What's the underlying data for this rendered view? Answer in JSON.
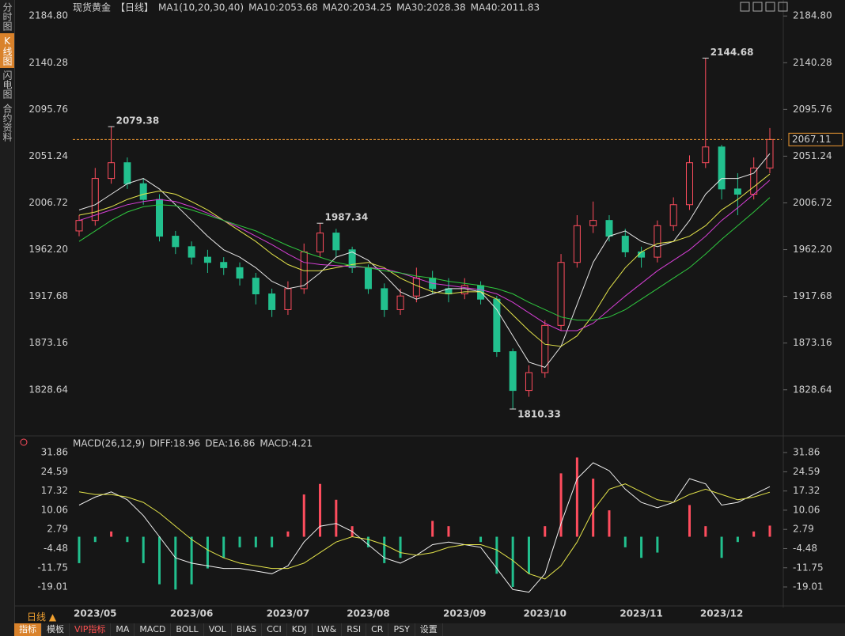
{
  "sidebar": {
    "tabs": [
      "分时图",
      "K线图",
      "闪电图",
      "合约资料"
    ]
  },
  "footer": {
    "period": "日线 ▲",
    "tabs": [
      "指标",
      "模板",
      "VIP指标",
      "MA",
      "MACD",
      "BOLL",
      "VOL",
      "BIAS",
      "CCI",
      "KDJ",
      "LW&",
      "RSI",
      "CR",
      "PSY",
      "设置"
    ]
  },
  "chart_data": [
    {
      "type": "candlestick",
      "title": "现货黄金",
      "subtitle": "【日线】",
      "indicator": "MA1(10,20,30,40)",
      "categories": [
        null,
        "2023/05",
        null,
        null,
        null,
        null,
        null,
        "2023/06",
        null,
        null,
        null,
        null,
        null,
        "2023/07",
        null,
        null,
        null,
        null,
        "2023/08",
        null,
        null,
        null,
        null,
        null,
        "2023/09",
        null,
        null,
        null,
        null,
        "2023/10",
        null,
        null,
        null,
        null,
        null,
        "2023/11",
        null,
        null,
        null,
        null,
        "2023/12",
        null,
        null,
        null
      ],
      "open": [
        1980,
        1990,
        2030,
        2045,
        2025,
        2010,
        1975,
        1965,
        1955,
        1950,
        1945,
        1935,
        1920,
        1905,
        1925,
        1960,
        1978,
        1962,
        1945,
        1925,
        1905,
        1918,
        1935,
        1925,
        1920,
        1928,
        1915,
        1865,
        1828,
        1845,
        1890,
        1950,
        1985,
        1990,
        1975,
        1960,
        1955,
        1985,
        2005,
        2045,
        2060,
        2020,
        2015,
        2040
      ],
      "high": [
        1995,
        2040,
        2079.38,
        2050,
        2030,
        2015,
        1980,
        1970,
        1962,
        1955,
        1950,
        1940,
        1925,
        1932,
        1968,
        1987.34,
        1982,
        1965,
        1948,
        1930,
        1925,
        1945,
        1942,
        1935,
        1935,
        1932,
        1918,
        1868,
        1852,
        1895,
        1958,
        1995,
        2008,
        1995,
        1982,
        1965,
        1990,
        2012,
        2052,
        2144.68,
        2062,
        2035,
        2050,
        2078
      ],
      "low": [
        1975,
        1985,
        2025,
        2020,
        2005,
        1970,
        1958,
        1948,
        1940,
        1938,
        1928,
        1910,
        1898,
        1900,
        1920,
        1955,
        1955,
        1940,
        1920,
        1898,
        1900,
        1912,
        1920,
        1912,
        1915,
        1910,
        1860,
        1810.33,
        1822,
        1840,
        1885,
        1945,
        1978,
        1970,
        1955,
        1945,
        1950,
        1980,
        2000,
        2040,
        2010,
        1995,
        2010,
        2035
      ],
      "close": [
        1990,
        2030,
        2045,
        2025,
        2010,
        1975,
        1965,
        1955,
        1950,
        1945,
        1935,
        1920,
        1905,
        1925,
        1960,
        1978,
        1962,
        1945,
        1925,
        1905,
        1918,
        1935,
        1925,
        1920,
        1928,
        1915,
        1865,
        1828,
        1845,
        1890,
        1950,
        1985,
        1990,
        1975,
        1960,
        1955,
        1985,
        2005,
        2045,
        2060,
        2020,
        2015,
        2040,
        2067.11
      ],
      "up_color": "#ff4d5e",
      "down_color": "#22c08e",
      "last_color": "#f39c32",
      "series": [
        {
          "name": "MA10:2053.68",
          "color": "#e6e6e6",
          "values": [
            2000,
            2005,
            2015,
            2025,
            2030,
            2020,
            2005,
            1990,
            1975,
            1962,
            1955,
            1945,
            1932,
            1925,
            1928,
            1940,
            1955,
            1960,
            1952,
            1938,
            1922,
            1915,
            1920,
            1925,
            1925,
            1922,
            1905,
            1880,
            1855,
            1850,
            1870,
            1910,
            1950,
            1975,
            1980,
            1970,
            1965,
            1970,
            1990,
            2015,
            2030,
            2030,
            2035,
            2053.68
          ]
        },
        {
          "name": "MA20:2034.25",
          "color": "#e3e34a",
          "values": [
            1995,
            1998,
            2003,
            2010,
            2015,
            2018,
            2015,
            2008,
            2000,
            1990,
            1980,
            1970,
            1958,
            1948,
            1942,
            1942,
            1945,
            1948,
            1950,
            1945,
            1935,
            1928,
            1922,
            1920,
            1922,
            1922,
            1915,
            1900,
            1885,
            1872,
            1870,
            1880,
            1900,
            1925,
            1945,
            1960,
            1968,
            1970,
            1975,
            1985,
            2000,
            2010,
            2022,
            2034.25
          ]
        },
        {
          "name": "MA30:2028.38",
          "color": "#d63fd6",
          "values": [
            1990,
            1995,
            2000,
            2005,
            2008,
            2010,
            2008,
            2003,
            1997,
            1990,
            1983,
            1975,
            1967,
            1958,
            1950,
            1948,
            1947,
            1946,
            1945,
            1944,
            1940,
            1935,
            1930,
            1928,
            1926,
            1924,
            1920,
            1912,
            1902,
            1892,
            1885,
            1885,
            1892,
            1905,
            1918,
            1930,
            1942,
            1952,
            1962,
            1975,
            1990,
            2002,
            2015,
            2028.38
          ]
        },
        {
          "name": "MA40:2011.83",
          "color": "#2fc93f",
          "values": [
            1970,
            1980,
            1990,
            1998,
            2003,
            2005,
            2004,
            2000,
            1995,
            1990,
            1985,
            1980,
            1973,
            1966,
            1960,
            1955,
            1950,
            1947,
            1945,
            1942,
            1940,
            1937,
            1935,
            1932,
            1930,
            1928,
            1925,
            1920,
            1912,
            1905,
            1898,
            1895,
            1895,
            1898,
            1905,
            1915,
            1925,
            1935,
            1945,
            1958,
            1972,
            1985,
            1998,
            2011.83
          ]
        }
      ],
      "ylim": [
        1787,
        2194
      ],
      "yticks": [
        {
          "value": 2184.8,
          "label": "2184.80"
        },
        2140.28,
        2095.76,
        2051.24,
        2006.72,
        {
          "value": 1962.2,
          "label": "1962.20"
        },
        1917.68,
        1873.16,
        1828.64
      ]
    },
    {
      "type": "macd",
      "title": "MACD(26,12,9)",
      "up_color": "#ff4d5e",
      "down_color": "#22c08e",
      "series": [
        {
          "name": "DIFF:18.96",
          "color": "#f0f0f0",
          "values": [
            12,
            15,
            17,
            14,
            8,
            0,
            -8,
            -10,
            -11,
            -12,
            -12,
            -13,
            -14,
            -11,
            -2,
            4,
            5,
            2,
            -3,
            -8,
            -10,
            -7,
            -3,
            -2,
            -3,
            -4,
            -12,
            -20,
            -21,
            -14,
            5,
            22,
            28,
            25,
            18,
            13,
            11,
            13,
            22,
            20,
            12,
            13,
            16,
            18.96
          ]
        },
        {
          "name": "DEA:16.86",
          "color": "#e3e34a",
          "values": [
            17,
            16,
            16,
            15,
            13,
            9,
            4,
            -1,
            -5,
            -8,
            -10,
            -11,
            -12,
            -12,
            -10,
            -6,
            -2,
            0,
            -1,
            -3,
            -6,
            -7,
            -6,
            -4,
            -3,
            -3,
            -5,
            -9,
            -14,
            -16,
            -11,
            -2,
            10,
            18,
            20,
            17,
            14,
            13,
            16,
            18,
            16,
            14,
            15,
            16.86
          ]
        },
        {
          "name": "MACD:4.21",
          "color": "#d63fd6",
          "histogram": true,
          "values": [
            -10,
            -2,
            2,
            -2,
            -10,
            -18,
            -20,
            -18,
            -12,
            -8,
            -4,
            -4,
            -4,
            2,
            16,
            20,
            14,
            4,
            -4,
            -10,
            -8,
            0,
            6,
            4,
            0,
            -2,
            -14,
            -19,
            -14,
            4,
            24,
            30,
            22,
            10,
            -4,
            -8,
            -6,
            0,
            12,
            4,
            -8,
            -2,
            2,
            4.21
          ]
        }
      ],
      "ylim": [
        -25.9,
        34
      ],
      "yticks": [
        31.86,
        24.59,
        17.32,
        10.06,
        2.79,
        -4.48,
        -11.75,
        -19.01
      ]
    }
  ]
}
